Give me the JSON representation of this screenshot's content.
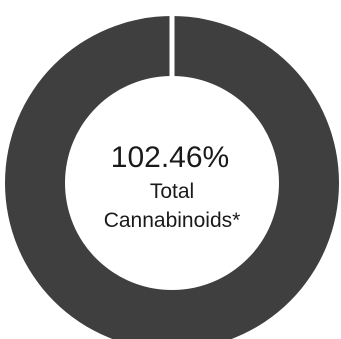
{
  "chart_data": {
    "type": "pie",
    "style": "donut",
    "slices": [
      {
        "value": 100,
        "color": "#3f3f3f"
      }
    ],
    "center_value": "102.46%",
    "center_label_line1": "Total",
    "center_label_line2": "Cannabinoids*"
  },
  "colors": {
    "ring": "#3f3f3f",
    "background": "#ffffff",
    "text": "#1a1a1a"
  }
}
